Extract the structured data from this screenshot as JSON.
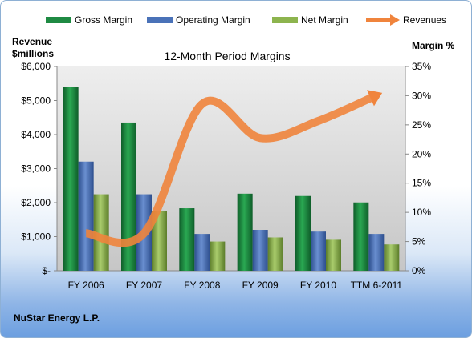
{
  "chart_data": {
    "type": "bar",
    "title": "12-Month Period Margins",
    "categories": [
      "FY 2006",
      "FY 2007",
      "FY 2008",
      "FY 2009",
      "FY 2010",
      "TTM 6-2011"
    ],
    "left_axis": {
      "label_line1": "Revenue",
      "label_line2": "$millions",
      "range": [
        0,
        6000
      ],
      "ticks": [
        "$-",
        "$1,000",
        "$2,000",
        "$3,000",
        "$4,000",
        "$5,000",
        "$6,000"
      ]
    },
    "right_axis": {
      "label": "Margin %",
      "range": [
        0,
        35
      ],
      "ticks": [
        "0%",
        "5%",
        "10%",
        "15%",
        "20%",
        "25%",
        "30%",
        "35%"
      ]
    },
    "series": [
      {
        "name": "Gross Margin",
        "axis": "right",
        "color": "#1f8a43",
        "values": [
          31.5,
          25.4,
          10.7,
          13.2,
          12.8,
          11.7
        ]
      },
      {
        "name": "Operating Margin",
        "axis": "right",
        "color": "#4a72b8",
        "values": [
          18.7,
          13.1,
          6.3,
          7.0,
          6.7,
          6.3
        ]
      },
      {
        "name": "Net Margin",
        "axis": "right",
        "color": "#8db44e",
        "values": [
          13.1,
          10.2,
          5.0,
          5.7,
          5.3,
          4.5
        ]
      },
      {
        "name": "Revenues",
        "axis": "left",
        "type": "line",
        "color": "#f0843c",
        "values": [
          1100,
          1100,
          4900,
          3900,
          4400,
          5150
        ]
      }
    ],
    "legend_position": "top",
    "grid": false
  },
  "company": "NuStar Energy L.P."
}
